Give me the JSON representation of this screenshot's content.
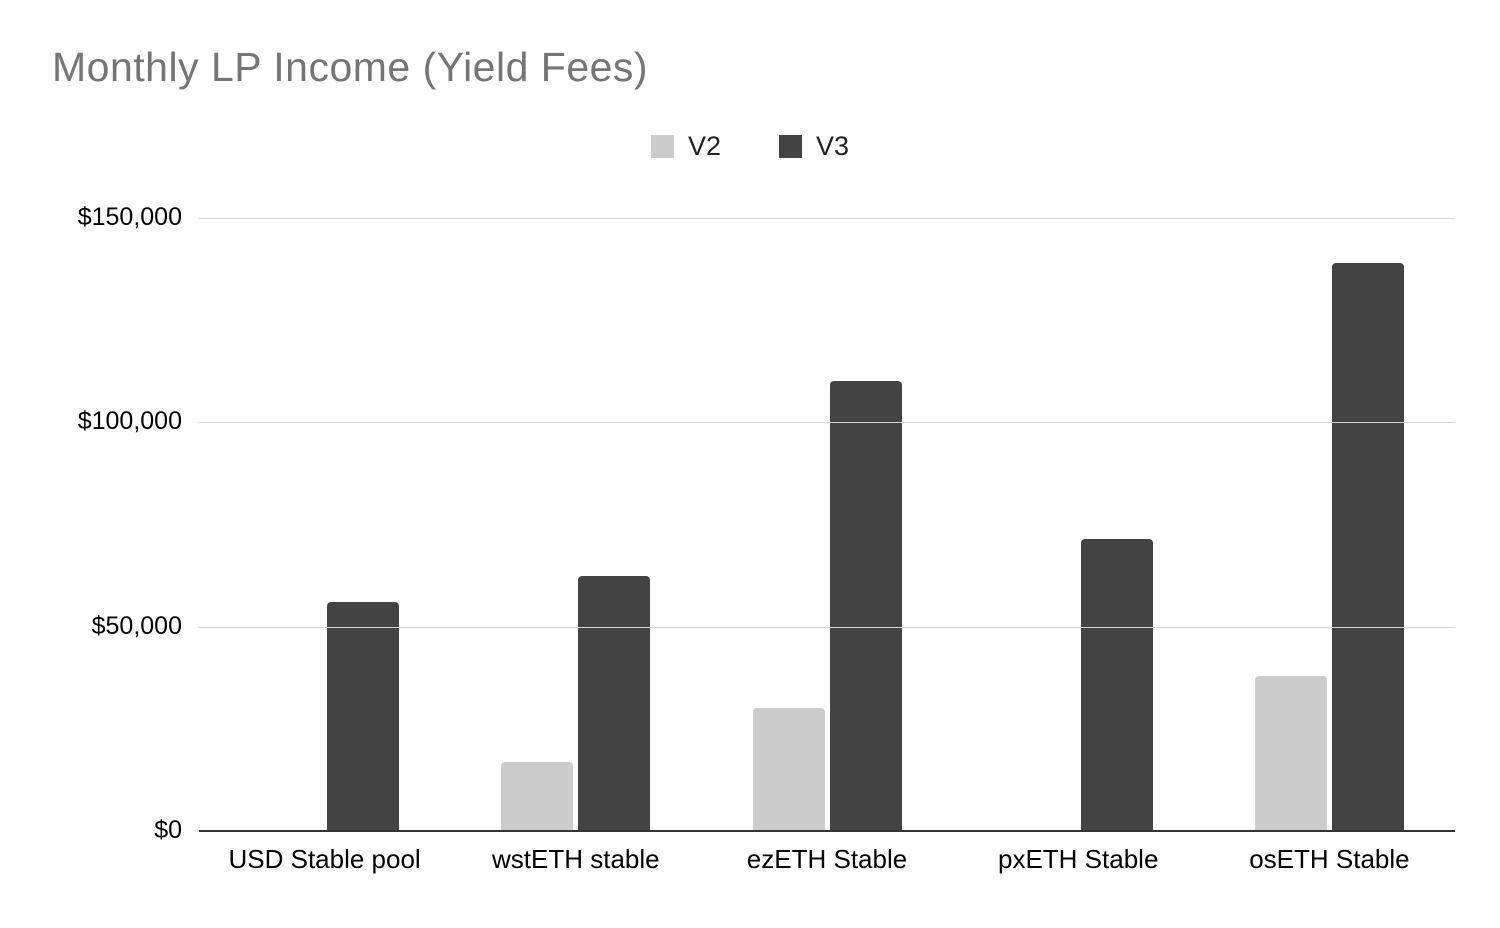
{
  "chart_data": {
    "type": "bar",
    "title": "Monthly LP Income (Yield Fees)",
    "categories": [
      "USD Stable pool",
      "wstETH stable",
      "ezETH Stable",
      "pxETH Stable",
      "osETH Stable"
    ],
    "series": [
      {
        "name": "V2",
        "color": "#cccccc",
        "values": [
          0,
          17000,
          30000,
          0,
          38000
        ]
      },
      {
        "name": "V3",
        "color": "#434343",
        "values": [
          56000,
          62500,
          110000,
          71500,
          139000
        ]
      }
    ],
    "yticks": [
      {
        "value": 0,
        "label": "$0"
      },
      {
        "value": 50000,
        "label": "$50,000"
      },
      {
        "value": 100000,
        "label": "$100,000"
      },
      {
        "value": 150000,
        "label": "$150,000"
      }
    ],
    "ylim": [
      0,
      150000
    ],
    "xlabel": "",
    "ylabel": "",
    "grid": true,
    "legend_position": "top"
  },
  "colors": {
    "background": "#ffffff",
    "title_text": "#757575",
    "tick_label": "#000000",
    "gridline": "#d5d5d5",
    "axis_line": "#333333",
    "series_v2": "#cccccc",
    "series_v3": "#434343"
  }
}
